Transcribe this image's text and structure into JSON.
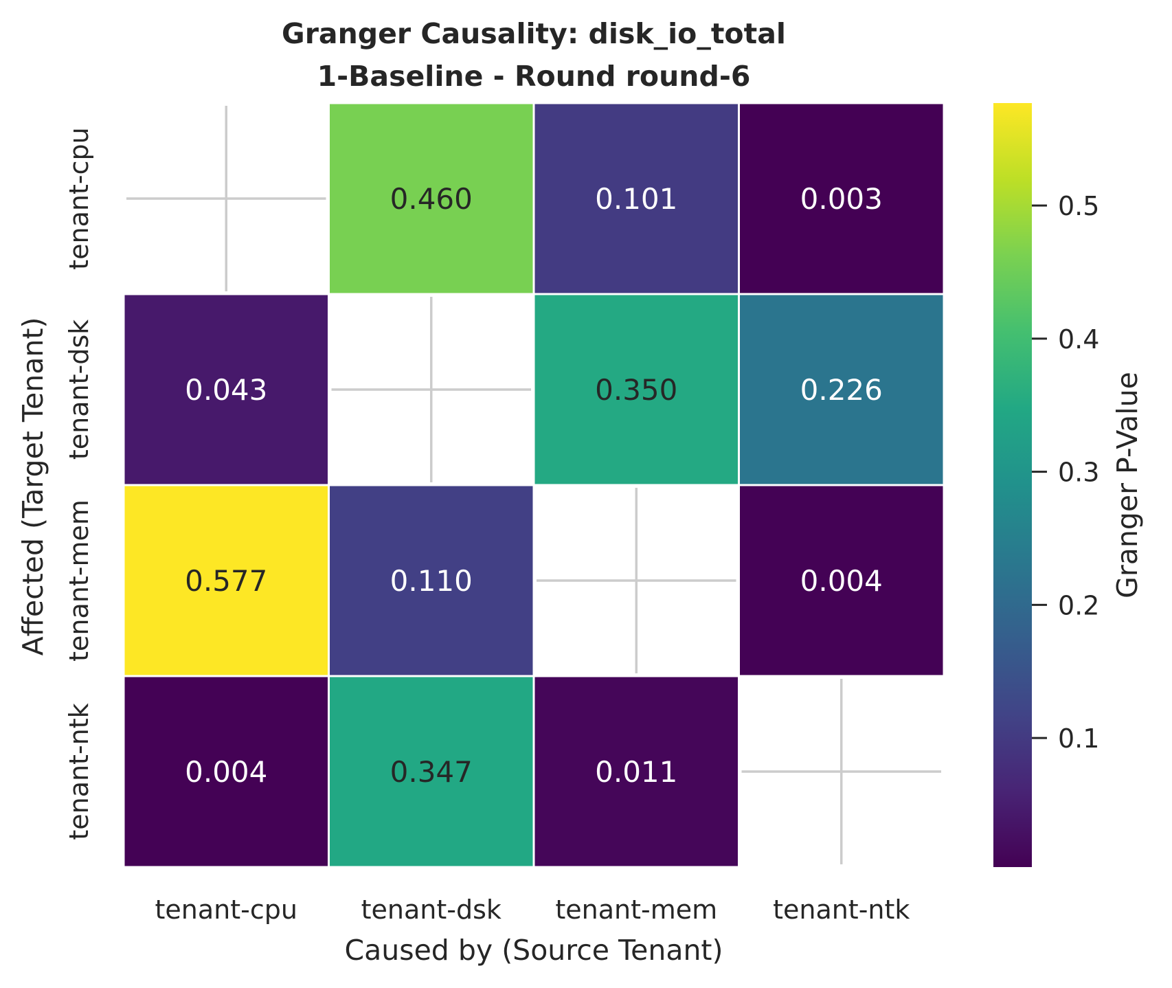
{
  "chart_data": {
    "type": "heatmap",
    "title_line1": "Granger Causality: disk_io_total",
    "title_line2": "1-Baseline - Round round-6",
    "xlabel": "Caused by (Source Tenant)",
    "ylabel": "Affected (Target Tenant)",
    "x_categories": [
      "tenant-cpu",
      "tenant-dsk",
      "tenant-mem",
      "tenant-ntk"
    ],
    "y_categories": [
      "tenant-cpu",
      "tenant-dsk",
      "tenant-mem",
      "tenant-ntk"
    ],
    "values": [
      [
        null,
        0.46,
        0.101,
        0.003
      ],
      [
        0.043,
        null,
        0.35,
        0.226
      ],
      [
        0.577,
        0.11,
        null,
        0.004
      ],
      [
        0.004,
        0.347,
        0.011,
        null
      ]
    ],
    "value_labels": [
      [
        null,
        "0.460",
        "0.101",
        "0.003"
      ],
      [
        "0.043",
        null,
        "0.350",
        "0.226"
      ],
      [
        "0.577",
        "0.110",
        null,
        "0.004"
      ],
      [
        "0.004",
        "0.347",
        "0.011",
        null
      ]
    ],
    "colorbar": {
      "label": "Granger P-Value",
      "range": [
        0.003,
        0.577
      ],
      "ticks": [
        0.1,
        0.2,
        0.3,
        0.4,
        0.5
      ],
      "tick_labels": [
        "0.1",
        "0.2",
        "0.3",
        "0.4",
        "0.5"
      ],
      "colormap": "viridis"
    },
    "grid": true,
    "missing_diagonal": true
  }
}
